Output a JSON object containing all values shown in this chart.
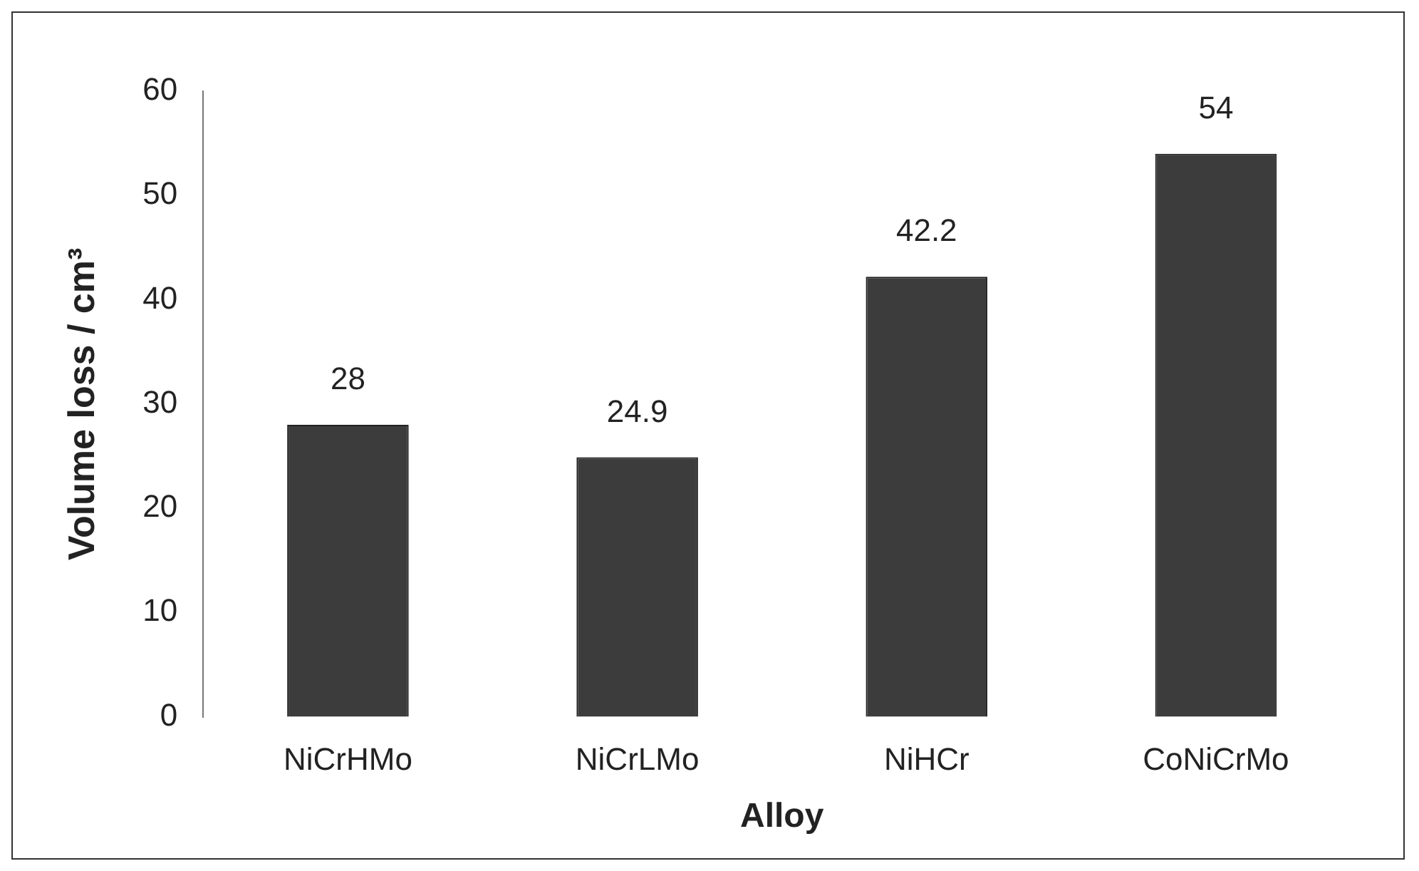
{
  "chart_data": {
    "type": "bar",
    "xlabel": "Alloy",
    "ylabel": "Volume loss / cm³",
    "categories": [
      "NiCrHMo",
      "NiCrLMo",
      "NiHCr",
      "CoNiCrMo"
    ],
    "values": [
      28,
      24.9,
      42.2,
      54
    ],
    "color": "#3c3c3c",
    "ylim": [
      0,
      60
    ],
    "yticks": [
      0,
      10,
      20,
      30,
      40,
      50,
      60
    ],
    "grid": false,
    "legend": false,
    "data_labels": true
  }
}
